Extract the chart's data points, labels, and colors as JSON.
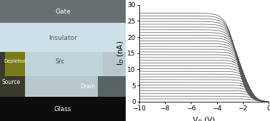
{
  "left_panel": {
    "glass_color": "#0d0d0d",
    "source_color": "#3a3a2e",
    "depletion_color": "#7a7a1a",
    "sc_color": "#bfd4d8",
    "insulator_color": "#cde0e8",
    "gate_color": "#686f72",
    "drain_color": "#5a6464",
    "bg_color": "#b8c8cc"
  },
  "right_panel": {
    "vd_min": -10,
    "vd_max": 0,
    "id_min": 0,
    "id_max": 30,
    "n_curves": 32,
    "xlabel": "V$_D$ (V)",
    "ylabel": "I$_D$ (nA)",
    "xticks": [
      -10,
      -8,
      -6,
      -4,
      -2,
      0
    ],
    "yticks": [
      0,
      5,
      10,
      15,
      20,
      25,
      30
    ],
    "curve_color": "#555555",
    "linewidth": 0.55
  }
}
